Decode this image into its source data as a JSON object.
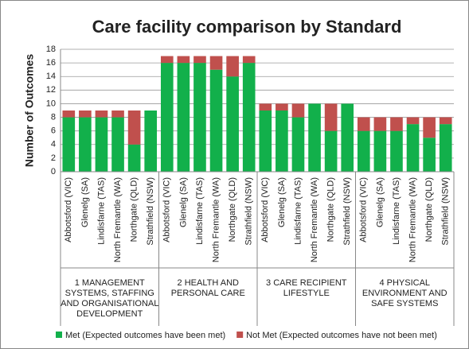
{
  "chart_data": {
    "type": "stacked_bar",
    "title": "Care facility comparison by Standard",
    "y_label": "Number of Outcomes",
    "categories": [
      "Abbotsford (VIC)",
      "Glenelg (SA)",
      "Lindisfarne (TAS)",
      "North Fremantle (WA)",
      "Northgate (QLD)",
      "Strathfield (NSW)",
      "Abbotsford (VIC)",
      "Glenelg (SA)",
      "Lindisfarne (TAS)",
      "North Fremantle (WA)",
      "Northgate (QLD)",
      "Strathfield (NSW)",
      "Abbotsford (VIC)",
      "Glenelg (SA)",
      "Lindisfarne (TAS)",
      "North Fremantle (WA)",
      "Northgate (QLD)",
      "Strathfield (NSW)",
      "Abbotsford (VIC)",
      "Glenelg (SA)",
      "Lindisfarne (TAS)",
      "North Fremantle (WA)",
      "Northgate (QLD)",
      "Strathfield (NSW)"
    ],
    "groups": [
      "1 MANAGEMENT SYSTEMS, STAFFING AND ORGANISATIONAL DEVELOPMENT",
      "2 HEALTH AND PERSONAL CARE",
      "3 CARE RECIPIENT LIFESTYLE",
      "4 PHYSICAL ENVIRONMENT AND SAFE SYSTEMS"
    ],
    "series": [
      {
        "name": "Met (Expected outcomes have been met)",
        "color": "#12b04b",
        "values": [
          8,
          8,
          8,
          8,
          4,
          9,
          16,
          16,
          16,
          15,
          14,
          16,
          9,
          9,
          8,
          10,
          6,
          10,
          6,
          6,
          6,
          7,
          5,
          7
        ]
      },
      {
        "name": "Not Met (Expected outcomes have not been met)",
        "color": "#c0504d",
        "values": [
          1,
          1,
          1,
          1,
          5,
          0,
          1,
          1,
          1,
          2,
          3,
          1,
          1,
          1,
          2,
          0,
          4,
          0,
          2,
          2,
          2,
          1,
          3,
          1
        ]
      }
    ],
    "ylim": [
      0,
      18
    ],
    "yticks": [
      0,
      2,
      4,
      6,
      8,
      10,
      12,
      14,
      16,
      18
    ],
    "grid": true,
    "legend": "bottom"
  }
}
